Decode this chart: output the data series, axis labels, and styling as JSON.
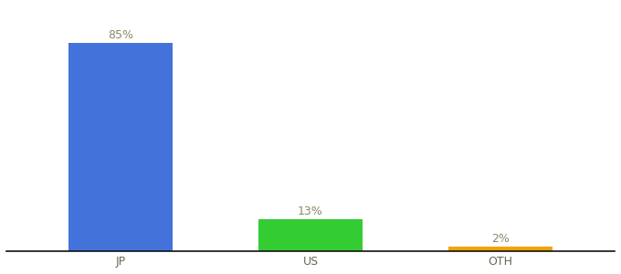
{
  "categories": [
    "JP",
    "US",
    "OTH"
  ],
  "values": [
    85,
    13,
    2
  ],
  "bar_colors": [
    "#4472db",
    "#33cc33",
    "#f0a500"
  ],
  "label_texts": [
    "85%",
    "13%",
    "2%"
  ],
  "label_fontsize": 9,
  "tick_fontsize": 9,
  "ylim": [
    0,
    100
  ],
  "background_color": "#ffffff",
  "bar_width": 0.55
}
